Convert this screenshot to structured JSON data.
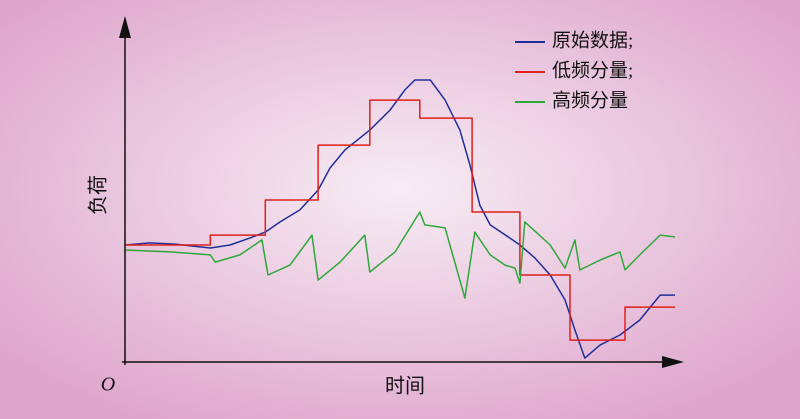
{
  "chart_data": {
    "type": "line",
    "x_label": "时间",
    "y_label": "负荷",
    "origin_label": "O",
    "xlim": [
      0,
      100
    ],
    "ylim": [
      0,
      100
    ],
    "legend": "upper right",
    "series": [
      {
        "name": "原始数据;",
        "color": "#1f2f9a",
        "x": [
          0,
          4.5,
          9.1,
          15.5,
          19.1,
          22.7,
          25.5,
          28.2,
          31.8,
          35.1,
          37.3,
          40,
          44.5,
          48.2,
          50.9,
          52.7,
          55.5,
          58.2,
          60.9,
          62.7,
          64.5,
          66.4,
          70,
          71.8,
          74.5,
          77.3,
          80,
          81.8,
          83.6,
          86.4,
          90,
          93.6,
          97.3,
          100
        ],
        "values": [
          39,
          39.7,
          39.3,
          38,
          39,
          41.3,
          43.3,
          46.7,
          50.7,
          57.3,
          64.7,
          70.7,
          77.3,
          84,
          90.7,
          94,
          94,
          87.3,
          77.3,
          65.7,
          52.3,
          45.7,
          41.3,
          39,
          34.7,
          29,
          20.7,
          10.7,
          1.3,
          5.7,
          9,
          14,
          22.3,
          22.3
        ]
      },
      {
        "name": "低频分量;",
        "color": "#e0201a",
        "x": [
          0,
          15.5,
          15.5,
          25.5,
          25.5,
          35.1,
          35.1,
          44.5,
          44.5,
          53.6,
          53.6,
          63.1,
          63.1,
          71.8,
          71.8,
          80.9,
          80.9,
          90.9,
          90.9,
          100
        ],
        "values": [
          39,
          39,
          42.3,
          42.3,
          54,
          54,
          72.3,
          72.3,
          87.3,
          87.3,
          81.3,
          81.3,
          50,
          50,
          29,
          29,
          7.3,
          7.3,
          18.3,
          18.3
        ]
      },
      {
        "name": "高频分量",
        "color": "#2ea83a",
        "x": [
          0,
          8.2,
          15.5,
          16.4,
          20.9,
          24.9,
          26,
          30,
          34,
          35.1,
          39.1,
          43.6,
          44.5,
          49.1,
          53.6,
          54.5,
          58.2,
          61.8,
          63.6,
          66.4,
          69.1,
          70.9,
          71.8,
          72.7,
          77.3,
          80,
          81.8,
          82.7,
          86.4,
          90,
          90.9,
          93.6,
          97.3,
          100
        ],
        "values": [
          37.3,
          36.7,
          35.7,
          33.3,
          35.7,
          40.7,
          29,
          32.3,
          42.3,
          27.3,
          33.3,
          42.3,
          30,
          36.7,
          50,
          45.7,
          44.7,
          21.3,
          43.3,
          35.7,
          32.3,
          31.3,
          26.3,
          46.7,
          39,
          31.3,
          40.7,
          30.7,
          34,
          36.7,
          30.7,
          35.7,
          42.3,
          41.7
        ]
      }
    ]
  }
}
